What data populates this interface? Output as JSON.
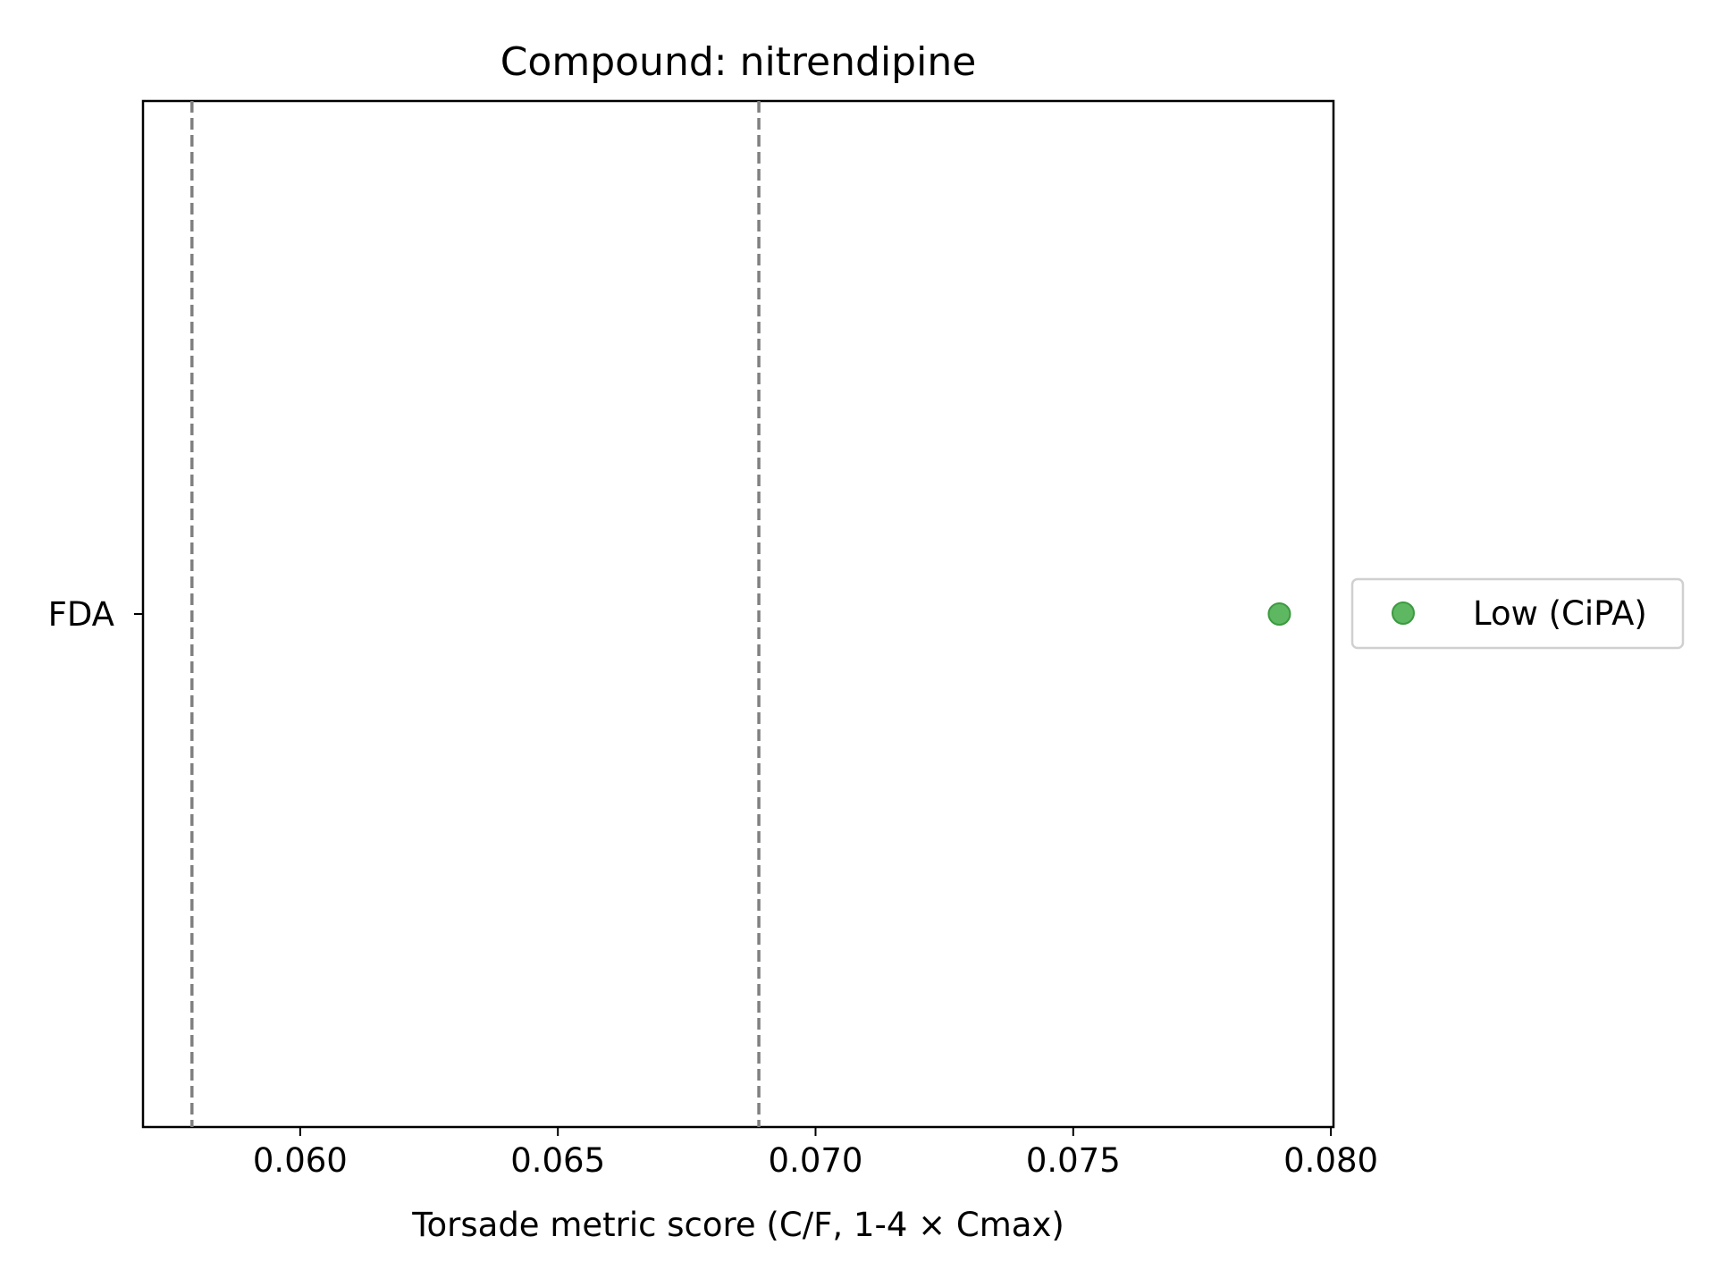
{
  "chart_data": {
    "type": "scatter",
    "title": "Compound: nitrendipine",
    "xlabel": "Torsade metric score (C/F, 1-4 × Cmax)",
    "ylabel": "",
    "xlim": [
      0.05695,
      0.08005
    ],
    "xticks": [
      0.06,
      0.065,
      0.07,
      0.075,
      0.08
    ],
    "xtick_labels": [
      "0.060",
      "0.065",
      "0.070",
      "0.075",
      "0.080"
    ],
    "categories": [
      "FDA"
    ],
    "reference_lines": [
      {
        "x": 0.0579,
        "style": "dashed",
        "color": "#808080"
      },
      {
        "x": 0.0689,
        "style": "dashed",
        "color": "#808080"
      }
    ],
    "series": [
      {
        "name": "Low (CiPA)",
        "color": "#4caf50",
        "points": [
          {
            "category": "FDA",
            "x": 0.079
          }
        ]
      }
    ],
    "legend_placement": "right-outside",
    "grid": false
  }
}
